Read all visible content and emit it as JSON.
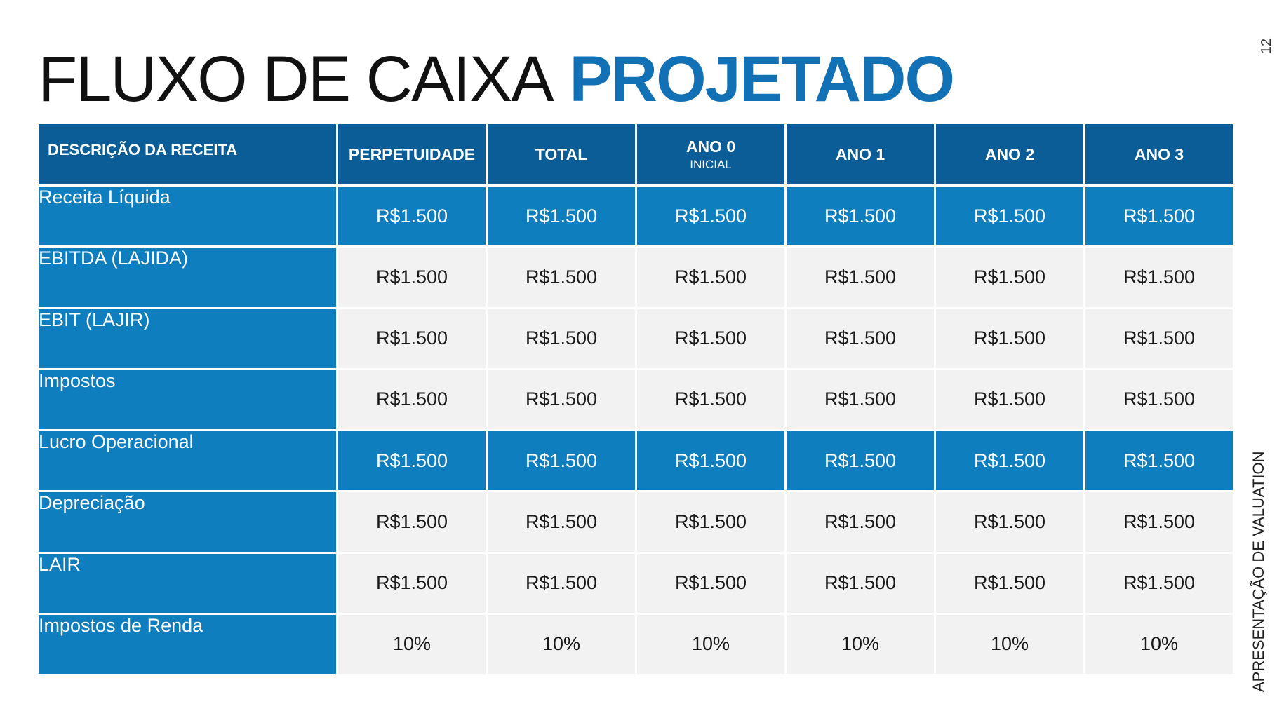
{
  "title": {
    "light": "FLUXO DE CAIXA",
    "bold": "PROJETADO"
  },
  "page_number": "12",
  "side_label": "APRESENTAÇÃO DE VALUATION",
  "table": {
    "headers": [
      {
        "label": "DESCRIÇÃO DA RECEITA",
        "sub": ""
      },
      {
        "label": "PERPETUIDADE",
        "sub": ""
      },
      {
        "label": "TOTAL",
        "sub": ""
      },
      {
        "label": "ANO 0",
        "sub": "INICIAL"
      },
      {
        "label": "ANO 1",
        "sub": ""
      },
      {
        "label": "ANO 2",
        "sub": ""
      },
      {
        "label": "ANO 3",
        "sub": ""
      }
    ],
    "rows": [
      {
        "label": "Receita Líquida",
        "values": [
          "R$1.500",
          "R$1.500",
          "R$1.500",
          "R$1.500",
          "R$1.500",
          "R$1.500"
        ]
      },
      {
        "label": "EBITDA (LAJIDA)",
        "values": [
          "R$1.500",
          "R$1.500",
          "R$1.500",
          "R$1.500",
          "R$1.500",
          "R$1.500"
        ]
      },
      {
        "label": "EBIT (LAJIR)",
        "values": [
          "R$1.500",
          "R$1.500",
          "R$1.500",
          "R$1.500",
          "R$1.500",
          "R$1.500"
        ]
      },
      {
        "label": "Impostos",
        "values": [
          "R$1.500",
          "R$1.500",
          "R$1.500",
          "R$1.500",
          "R$1.500",
          "R$1.500"
        ]
      },
      {
        "label": "Lucro Operacional",
        "values": [
          "R$1.500",
          "R$1.500",
          "R$1.500",
          "R$1.500",
          "R$1.500",
          "R$1.500"
        ]
      },
      {
        "label": "Depreciação",
        "values": [
          "R$1.500",
          "R$1.500",
          "R$1.500",
          "R$1.500",
          "R$1.500",
          "R$1.500"
        ]
      },
      {
        "label": "LAIR",
        "values": [
          "R$1.500",
          "R$1.500",
          "R$1.500",
          "R$1.500",
          "R$1.500",
          "R$1.500"
        ]
      },
      {
        "label": "Impostos de Renda",
        "values": [
          "10%",
          "10%",
          "10%",
          "10%",
          "10%",
          "10%"
        ]
      }
    ]
  },
  "colors": {
    "header_bg": "#0a5d96",
    "label_bg": "#0f7ebe",
    "highlight_bg": "#0f7ebe",
    "cell_bg": "#f2f2f2",
    "accent_title": "#1270b5"
  }
}
